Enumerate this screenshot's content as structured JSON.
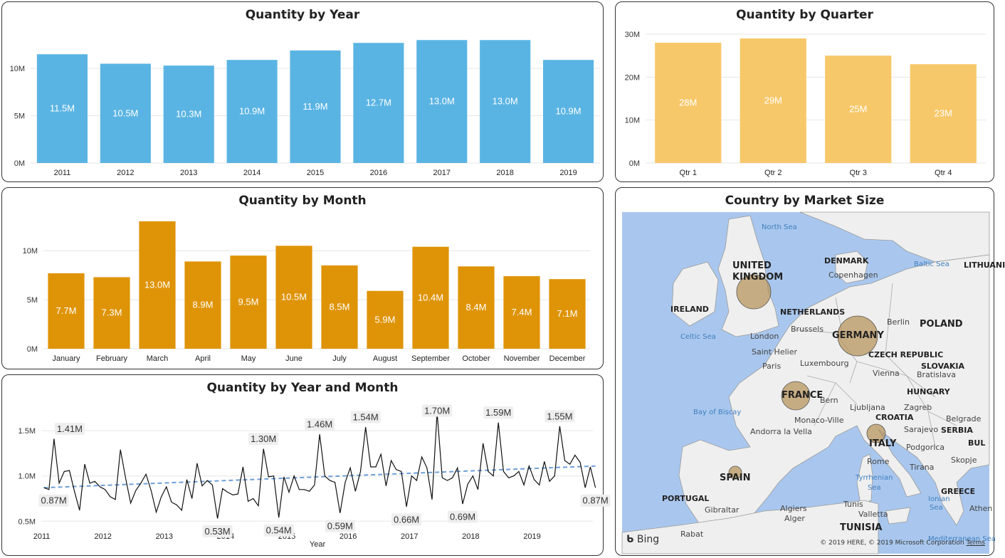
{
  "colors": {
    "year_bar": "#5ab4e3",
    "quarter_bar": "#f7c86a",
    "month_bar": "#df9408",
    "line": "#111111",
    "trend": "#6f9fd8",
    "map_water": "#a9c7ee",
    "map_land": "#efefef",
    "bubble": "#b8955e"
  },
  "chart_data": [
    {
      "type": "bar",
      "title": "Quantity by Year",
      "categories": [
        "2011",
        "2012",
        "2013",
        "2014",
        "2015",
        "2016",
        "2017",
        "2018",
        "2019"
      ],
      "values": [
        11.5,
        10.5,
        10.3,
        10.9,
        11.9,
        12.7,
        13.0,
        13.0,
        10.9
      ],
      "data_labels": [
        "11.5M",
        "10.5M",
        "10.3M",
        "10.9M",
        "11.9M",
        "12.7M",
        "13.0M",
        "13.0M",
        "10.9M"
      ],
      "yticks": [
        "0M",
        "5M",
        "10M"
      ],
      "ylim": [
        0,
        14
      ],
      "grid": true
    },
    {
      "type": "bar",
      "title": "Quantity by Quarter",
      "categories": [
        "Qtr 1",
        "Qtr 2",
        "Qtr 3",
        "Qtr 4"
      ],
      "values": [
        28,
        29,
        25,
        23
      ],
      "data_labels": [
        "28M",
        "29M",
        "25M",
        "23M"
      ],
      "yticks": [
        "0M",
        "10M",
        "20M",
        "30M"
      ],
      "ylim": [
        0,
        30
      ],
      "grid": true
    },
    {
      "type": "bar",
      "title": "Quantity by Month",
      "categories": [
        "January",
        "February",
        "March",
        "April",
        "May",
        "June",
        "July",
        "August",
        "September",
        "October",
        "November",
        "December"
      ],
      "values": [
        7.7,
        7.3,
        13.0,
        8.9,
        9.5,
        10.5,
        8.5,
        5.9,
        10.4,
        8.4,
        7.4,
        7.1
      ],
      "data_labels": [
        "7.7M",
        "7.3M",
        "13.0M",
        "8.9M",
        "9.5M",
        "10.5M",
        "8.5M",
        "5.9M",
        "10.4M",
        "8.4M",
        "7.4M",
        "7.1M"
      ],
      "yticks": [
        "0M",
        "5M",
        "10M"
      ],
      "ylim": [
        0,
        13.5
      ],
      "grid": true
    },
    {
      "type": "line",
      "title": "Quantity by Year and Month",
      "xlabel": "Year",
      "xticks": [
        "2011",
        "2012",
        "2013",
        "2014",
        "2015",
        "2016",
        "2017",
        "2018",
        "2019"
      ],
      "yticks": [
        "0.5M",
        "1.0M",
        "1.5M"
      ],
      "ylim": [
        0.4,
        1.8
      ],
      "start": "2011-01",
      "values": [
        0.87,
        0.85,
        1.41,
        0.92,
        1.05,
        1.06,
        0.83,
        0.62,
        1.13,
        0.92,
        0.94,
        0.88,
        0.85,
        0.77,
        0.74,
        1.29,
        0.98,
        0.7,
        0.84,
        0.92,
        1.02,
        0.84,
        0.6,
        0.77,
        0.88,
        0.71,
        0.68,
        0.62,
        0.96,
        0.75,
        1.14,
        0.89,
        0.95,
        0.9,
        0.53,
        0.86,
        0.82,
        0.79,
        0.8,
        1.1,
        0.72,
        0.75,
        0.67,
        1.3,
        0.99,
        1.0,
        0.54,
        0.99,
        0.82,
        1.0,
        0.85,
        0.85,
        0.83,
        0.9,
        1.46,
        1.0,
        0.95,
        0.93,
        0.59,
        0.93,
        1.09,
        0.83,
        1.05,
        1.54,
        1.1,
        1.1,
        1.24,
        0.89,
        1.17,
        1.07,
        1.05,
        0.66,
        1.0,
        0.95,
        1.21,
        1.09,
        0.74,
        1.7,
        0.98,
        0.95,
        0.98,
        1.09,
        0.69,
        0.91,
        1.0,
        0.85,
        1.36,
        1.05,
        1.0,
        1.59,
        1.05,
        0.98,
        1.0,
        1.05,
        0.9,
        1.11,
        0.96,
        0.9,
        1.16,
        0.94,
        1.0,
        1.55,
        1.17,
        1.13,
        1.23,
        1.15,
        0.87,
        1.1,
        0.87
      ],
      "annotations": [
        {
          "label": "0.87M",
          "index": 0
        },
        {
          "label": "1.41M",
          "index": 2
        },
        {
          "label": "0.53M",
          "index": 34
        },
        {
          "label": "1.30M",
          "index": 43
        },
        {
          "label": "0.54M",
          "index": 46
        },
        {
          "label": "1.46M",
          "index": 54
        },
        {
          "label": "0.59M",
          "index": 58
        },
        {
          "label": "1.54M",
          "index": 63
        },
        {
          "label": "0.66M",
          "index": 71
        },
        {
          "label": "1.70M",
          "index": 77
        },
        {
          "label": "0.69M",
          "index": 82
        },
        {
          "label": "1.59M",
          "index": 89
        },
        {
          "label": "1.55M",
          "index": 101
        },
        {
          "label": "0.87M",
          "index": 108
        }
      ],
      "trend": {
        "start": 0.87,
        "end": 1.11
      },
      "grid": true
    }
  ],
  "map": {
    "title": "Country by Market Size",
    "bubbles": [
      {
        "country": "UNITED KINGDOM",
        "size": "medium"
      },
      {
        "country": "GERMANY",
        "size": "large"
      },
      {
        "country": "FRANCE",
        "size": "medium"
      },
      {
        "country": "ITALY",
        "size": "small"
      },
      {
        "country": "SPAIN",
        "size": "small"
      }
    ],
    "labels": [
      {
        "text": "North Sea",
        "kind": "sea"
      },
      {
        "text": "DENMARK",
        "kind": "country"
      },
      {
        "text": "Baltic Sea",
        "kind": "sea"
      },
      {
        "text": "LITHUANI",
        "kind": "country"
      },
      {
        "text": "UNITED",
        "kind": "country-big"
      },
      {
        "text": "KINGDOM",
        "kind": "country-big"
      },
      {
        "text": "Copenhagen",
        "kind": "city"
      },
      {
        "text": "IRELAND",
        "kind": "country"
      },
      {
        "text": "NETHERLANDS",
        "kind": "country"
      },
      {
        "text": "Berlin",
        "kind": "city"
      },
      {
        "text": "POLAND",
        "kind": "country-big"
      },
      {
        "text": "Celtic Sea",
        "kind": "sea"
      },
      {
        "text": "London",
        "kind": "city"
      },
      {
        "text": "Brussels",
        "kind": "city"
      },
      {
        "text": "GERMANY",
        "kind": "country-big"
      },
      {
        "text": "Saint Helier",
        "kind": "city"
      },
      {
        "text": "CZECH REPUBLIC",
        "kind": "country"
      },
      {
        "text": "Paris",
        "kind": "city"
      },
      {
        "text": "Luxembourg",
        "kind": "city"
      },
      {
        "text": "SLOVAKIA",
        "kind": "country"
      },
      {
        "text": "Vienna",
        "kind": "city"
      },
      {
        "text": "Bratislava",
        "kind": "city"
      },
      {
        "text": "FRANCE",
        "kind": "country-big"
      },
      {
        "text": "HUNGARY",
        "kind": "country"
      },
      {
        "text": "Bern",
        "kind": "city"
      },
      {
        "text": "Ljubljana",
        "kind": "city"
      },
      {
        "text": "Zagreb",
        "kind": "city"
      },
      {
        "text": "Bay of Biscay",
        "kind": "sea"
      },
      {
        "text": "CROATIA",
        "kind": "country"
      },
      {
        "text": "Belgrade",
        "kind": "city"
      },
      {
        "text": "Monaco-Ville",
        "kind": "city"
      },
      {
        "text": "Sarajevo",
        "kind": "city"
      },
      {
        "text": "SERBIA",
        "kind": "country"
      },
      {
        "text": "Andorra la Vella",
        "kind": "city"
      },
      {
        "text": "ITALY",
        "kind": "country-big"
      },
      {
        "text": "Podgorica",
        "kind": "city"
      },
      {
        "text": "BUL",
        "kind": "country"
      },
      {
        "text": "SPAIN",
        "kind": "country-big"
      },
      {
        "text": "Rome",
        "kind": "city"
      },
      {
        "text": "Tirana",
        "kind": "city"
      },
      {
        "text": "Skopje",
        "kind": "city"
      },
      {
        "text": "Tyrrhenian",
        "kind": "sea"
      },
      {
        "text": "Sea",
        "kind": "sea"
      },
      {
        "text": "PORTUGAL",
        "kind": "country"
      },
      {
        "text": "GREECE",
        "kind": "country"
      },
      {
        "text": "Ionian",
        "kind": "sea"
      },
      {
        "text": "Sea",
        "kind": "sea"
      },
      {
        "text": "Gibraltar",
        "kind": "city"
      },
      {
        "text": "Algiers",
        "kind": "city"
      },
      {
        "text": "Tunis",
        "kind": "city"
      },
      {
        "text": "Athen",
        "kind": "city"
      },
      {
        "text": "Alger",
        "kind": "city"
      },
      {
        "text": "Valletta",
        "kind": "city"
      },
      {
        "text": "TUNISIA",
        "kind": "country-big"
      },
      {
        "text": "Rabat",
        "kind": "city"
      },
      {
        "text": "Mediterranean Sea",
        "kind": "sea"
      }
    ],
    "brand": "Bing",
    "copyright": "© 2019 HERE, © 2019 Microsoft Corporation",
    "terms": "Terms"
  }
}
